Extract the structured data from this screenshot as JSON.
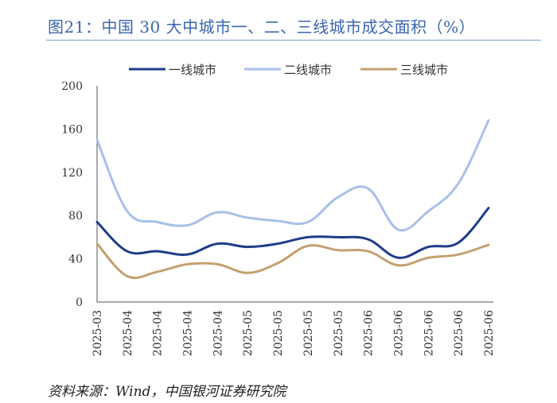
{
  "header": {
    "title": "图21：中国 30 大中城市一、二、三线城市成交面积（%）"
  },
  "footer": {
    "source": "资料来源：Wind，中国银河证券研究院"
  },
  "chart_data": {
    "type": "line",
    "title": "中国 30 大中城市一、二、三线城市成交面积（%）",
    "xlabel": "",
    "ylabel": "",
    "ylim": [
      0,
      200
    ],
    "yticks": [
      0,
      40,
      80,
      120,
      160,
      200
    ],
    "categories": [
      "2025-03",
      "2025-04",
      "2025-04",
      "2025-04",
      "2025-04",
      "2025-05",
      "2025-05",
      "2025-05",
      "2025-05",
      "2025-06",
      "2025-06",
      "2025-06",
      "2025-06",
      "2025-06"
    ],
    "legend_position": "top",
    "series": [
      {
        "name": "一线城市",
        "color": "#1f3c88",
        "values": [
          74,
          47,
          47,
          44,
          54,
          51,
          54,
          60,
          60,
          58,
          41,
          51,
          55,
          87
        ]
      },
      {
        "name": "二线城市",
        "color": "#a8c0e8",
        "values": [
          150,
          84,
          74,
          71,
          83,
          78,
          75,
          74,
          97,
          105,
          67,
          84,
          110,
          168
        ]
      },
      {
        "name": "三线城市",
        "color": "#c4a06f",
        "values": [
          54,
          24,
          28,
          35,
          35,
          27,
          36,
          52,
          48,
          47,
          34,
          41,
          44,
          53
        ]
      }
    ]
  }
}
